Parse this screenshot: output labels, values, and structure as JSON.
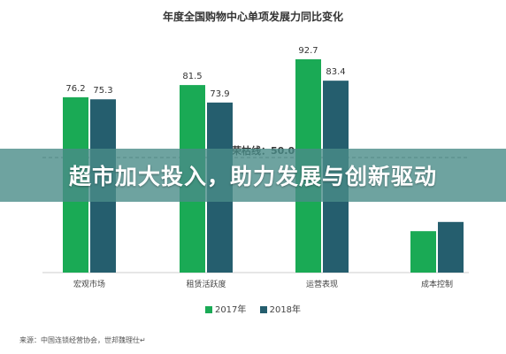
{
  "chart_data": {
    "type": "bar",
    "title": "年度全国购物中心单项发展力同比变化",
    "categories": [
      "宏观市场",
      "租赁活跃度",
      "运营表现",
      "成本控制"
    ],
    "series": [
      {
        "name": "2017年",
        "color": "#1aaa55",
        "values": [
          76.2,
          81.5,
          92.7,
          18
        ]
      },
      {
        "name": "2018年",
        "color": "#255e6e",
        "values": [
          75.3,
          73.9,
          83.4,
          22
        ]
      }
    ],
    "value_labels": [
      [
        "76.2",
        "75.3"
      ],
      [
        "81.5",
        "73.9"
      ],
      [
        "92.7",
        "83.4"
      ],
      [
        "",
        ""
      ]
    ],
    "ylim": [
      0,
      100
    ],
    "grid": false,
    "legend_position": "bottom-center",
    "annotation": {
      "label": "荣枯线：50.0",
      "value": 50.0
    }
  },
  "source": "来源：中国连锁经营协会，世邦魏理仕↵",
  "banner": {
    "text": "超市加大投入，助力发展与创新驱动"
  },
  "colors": {
    "banner_bg": "#4a8c88",
    "axis": "#cccccc",
    "threshold": "#888888"
  }
}
